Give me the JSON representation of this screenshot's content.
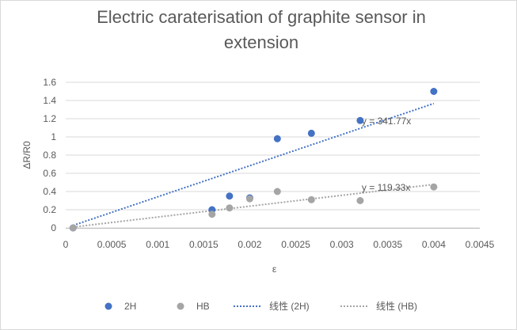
{
  "chart_data": {
    "type": "scatter",
    "title": "Electric caraterisation of graphite sensor in extension",
    "xlabel": "ε",
    "ylabel": "ΔR/R0",
    "xlim": [
      0,
      0.0045
    ],
    "ylim": [
      0,
      1.6
    ],
    "x_ticks": [
      "0",
      "0.0005",
      "0.001",
      "0.0015",
      "0.002",
      "0.0025",
      "0.003",
      "0.0035",
      "0.004",
      "0.0045"
    ],
    "y_ticks": [
      "0",
      "0.2",
      "0.4",
      "0.6",
      "0.8",
      "1",
      "1.2",
      "1.4",
      "1.6"
    ],
    "grid": "horizontal",
    "legend_position": "bottom",
    "series": [
      {
        "name": "2H",
        "color": "#4472c4",
        "points": [
          {
            "x": 8e-05,
            "y": 0.0
          },
          {
            "x": 0.00159,
            "y": 0.2
          },
          {
            "x": 0.00178,
            "y": 0.35
          },
          {
            "x": 0.002,
            "y": 0.33
          },
          {
            "x": 0.0023,
            "y": 0.98
          },
          {
            "x": 0.00267,
            "y": 1.04
          },
          {
            "x": 0.0032,
            "y": 1.18
          },
          {
            "x": 0.004,
            "y": 1.5
          }
        ]
      },
      {
        "name": "HB",
        "color": "#a5a5a5",
        "points": [
          {
            "x": 8e-05,
            "y": 0.0
          },
          {
            "x": 0.00159,
            "y": 0.15
          },
          {
            "x": 0.00178,
            "y": 0.22
          },
          {
            "x": 0.002,
            "y": 0.32
          },
          {
            "x": 0.0023,
            "y": 0.4
          },
          {
            "x": 0.00267,
            "y": 0.31
          },
          {
            "x": 0.0032,
            "y": 0.3
          },
          {
            "x": 0.004,
            "y": 0.45
          }
        ]
      }
    ],
    "trendlines": [
      {
        "name": "线性 (2H)",
        "series": "2H",
        "color": "#4472c4",
        "slope": 341.77,
        "x_range": [
          8e-05,
          0.004
        ],
        "equation": "y = 341.77x"
      },
      {
        "name": "线性 (HB)",
        "series": "HB",
        "color": "#a5a5a5",
        "slope": 119.33,
        "x_range": [
          8e-05,
          0.004
        ],
        "equation": "y = 119.33x"
      }
    ]
  }
}
